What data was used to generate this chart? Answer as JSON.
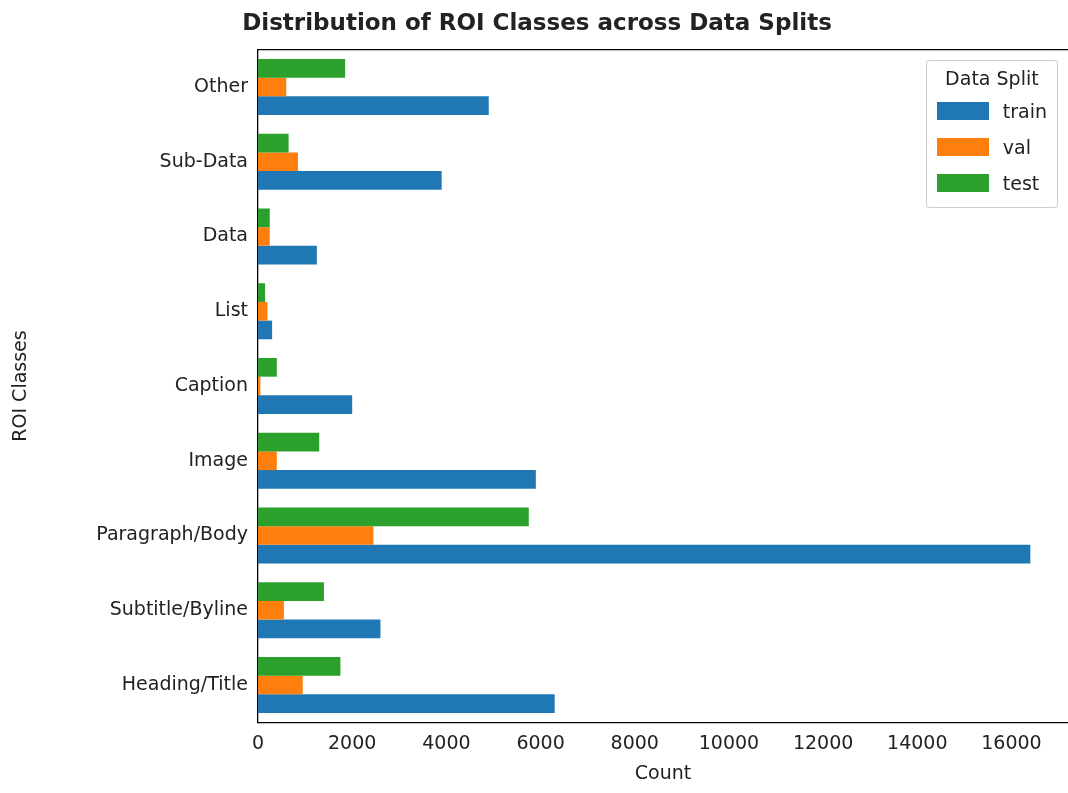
{
  "chart_data": {
    "type": "bar",
    "orientation": "horizontal",
    "title": "Distribution of ROI Classes across Data Splits",
    "xlabel": "Count",
    "ylabel": "ROI Classes",
    "legend_title": "Data Split",
    "legend": "top right",
    "grid": false,
    "categories": [
      "Other",
      "Sub-Data",
      "Data",
      "List",
      "Caption",
      "Image",
      "Paragraph/Body",
      "Subtitle/Byline",
      "Heading/Title"
    ],
    "xlim": [
      0,
      17200
    ],
    "xticks": [
      0,
      2000,
      4000,
      6000,
      8000,
      10000,
      12000,
      14000,
      16000
    ],
    "series": [
      {
        "name": "train",
        "color": "#1f77b4",
        "values": [
          4900,
          3900,
          1250,
          300,
          2000,
          5900,
          16400,
          2600,
          6300
        ]
      },
      {
        "name": "val",
        "color": "#ff7f0e",
        "values": [
          600,
          850,
          250,
          200,
          50,
          400,
          2450,
          550,
          950
        ]
      },
      {
        "name": "test",
        "color": "#2ca02c",
        "values": [
          1850,
          650,
          250,
          150,
          400,
          1300,
          5750,
          1400,
          1750
        ]
      }
    ]
  }
}
